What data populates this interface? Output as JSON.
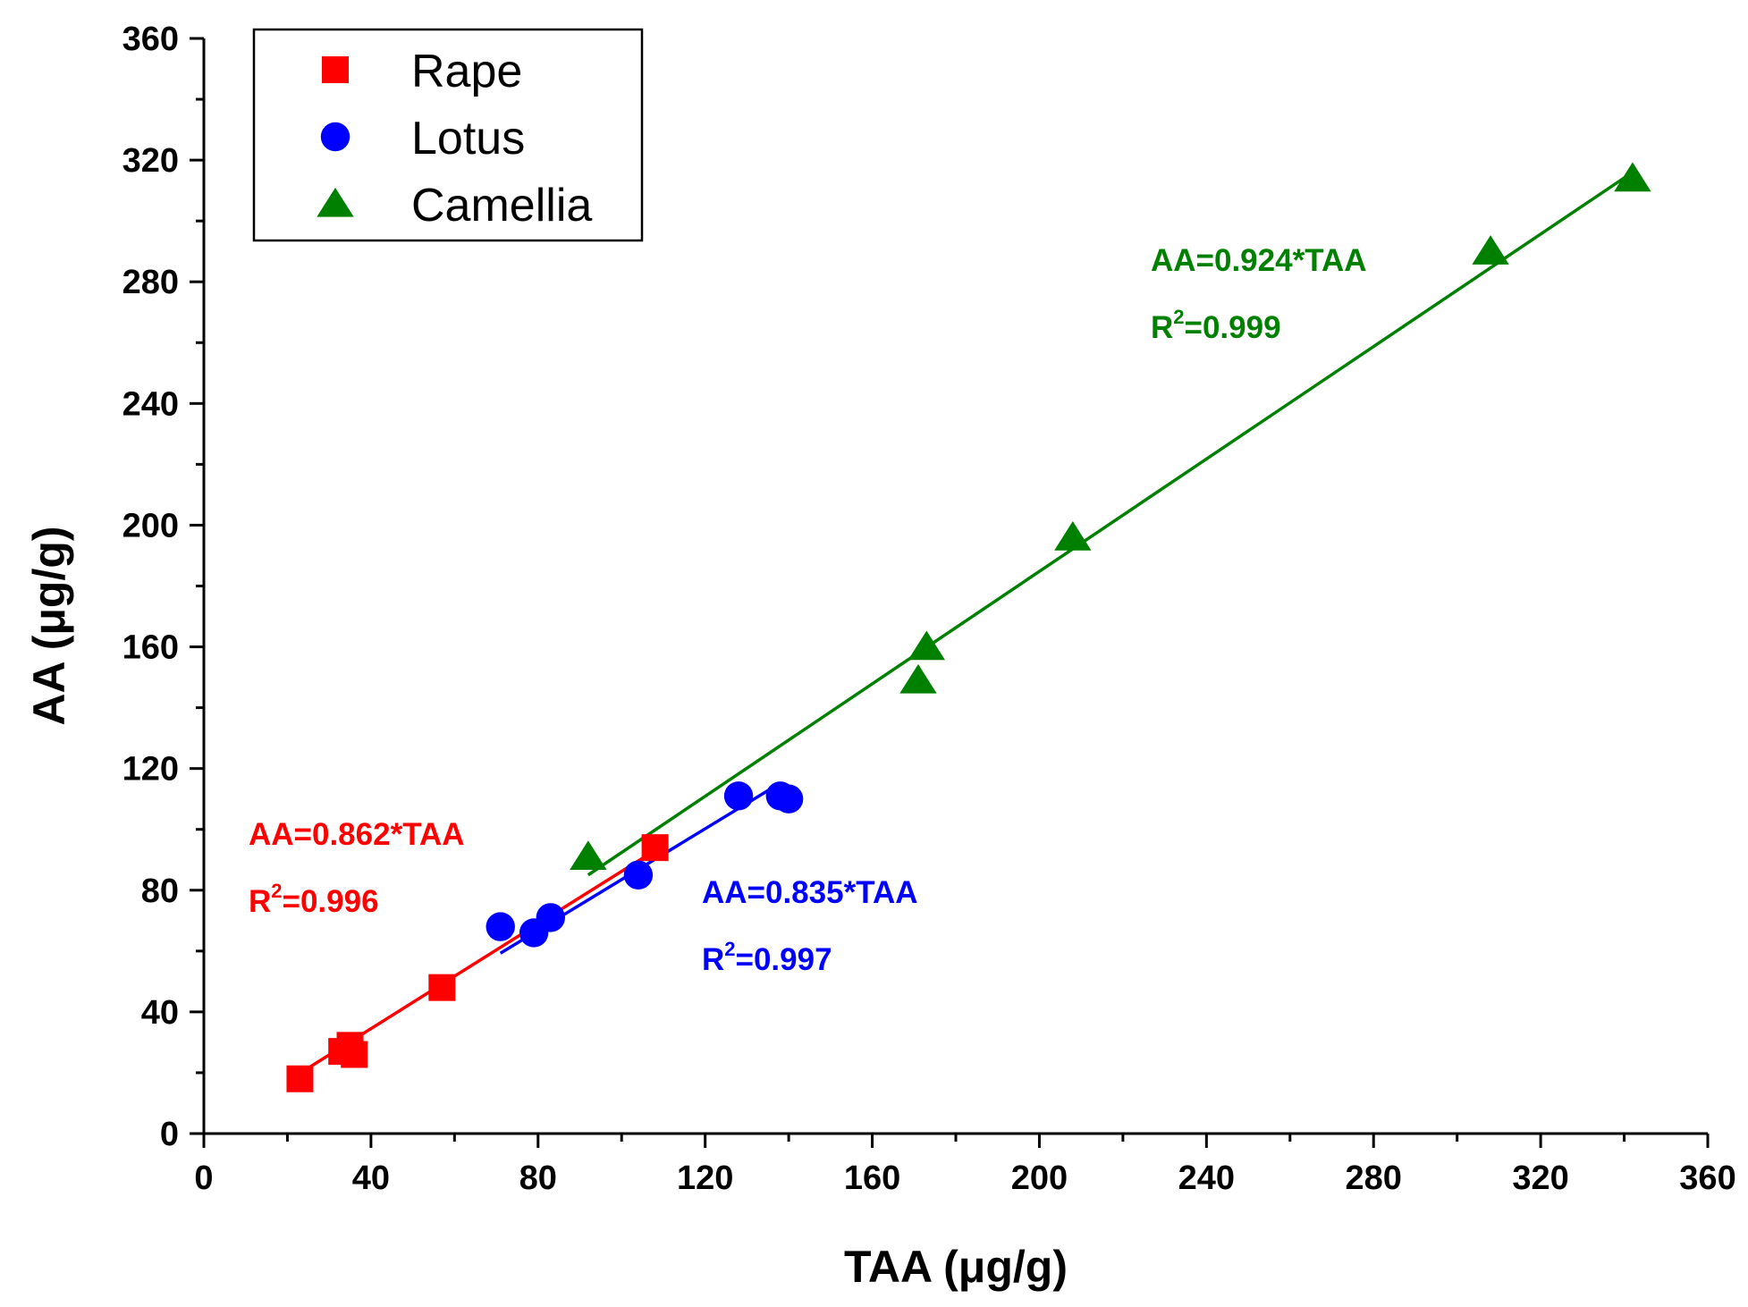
{
  "chart_data": {
    "type": "scatter",
    "xlabel": "TAA (μg/g)",
    "ylabel": "AA (μg/g)",
    "xlim": [
      0,
      360
    ],
    "ylim": [
      0,
      360
    ],
    "x_ticks": [
      0,
      40,
      80,
      120,
      160,
      200,
      240,
      280,
      320,
      360
    ],
    "y_ticks": [
      0,
      40,
      80,
      120,
      160,
      200,
      240,
      280,
      320,
      360
    ],
    "grid": false,
    "legend": {
      "position": "top-left"
    },
    "series": [
      {
        "name": "Rape",
        "color": "#ff0000",
        "marker": "square",
        "points": [
          [
            23,
            18
          ],
          [
            33,
            27
          ],
          [
            35,
            29
          ],
          [
            36,
            26
          ],
          [
            57,
            48
          ],
          [
            108,
            94
          ]
        ],
        "fit": {
          "slope": 0.862,
          "x_range": [
            23,
            108
          ]
        },
        "equation": "AA=0.862*TAA",
        "r2_prefix": "R",
        "r2_exp": "2",
        "r2_value": "=0.996"
      },
      {
        "name": "Lotus",
        "color": "#0000ff",
        "marker": "circle",
        "points": [
          [
            71,
            68
          ],
          [
            79,
            66
          ],
          [
            83,
            71
          ],
          [
            104,
            85
          ],
          [
            128,
            111
          ],
          [
            138,
            111
          ],
          [
            140,
            110
          ]
        ],
        "fit": {
          "slope": 0.835,
          "x_range": [
            71,
            138
          ]
        },
        "equation": "AA=0.835*TAA",
        "r2_prefix": "R",
        "r2_exp": "2",
        "r2_value": "=0.997"
      },
      {
        "name": "Camellia",
        "color": "#008000",
        "marker": "triangle",
        "points": [
          [
            92,
            91
          ],
          [
            171,
            149
          ],
          [
            173,
            160
          ],
          [
            208,
            196
          ],
          [
            308,
            290
          ],
          [
            342,
            314
          ]
        ],
        "fit": {
          "slope": 0.924,
          "x_range": [
            92,
            342
          ]
        },
        "equation": "AA=0.924*TAA",
        "r2_prefix": "R",
        "r2_exp": "2",
        "r2_value": "=0.999"
      }
    ]
  }
}
